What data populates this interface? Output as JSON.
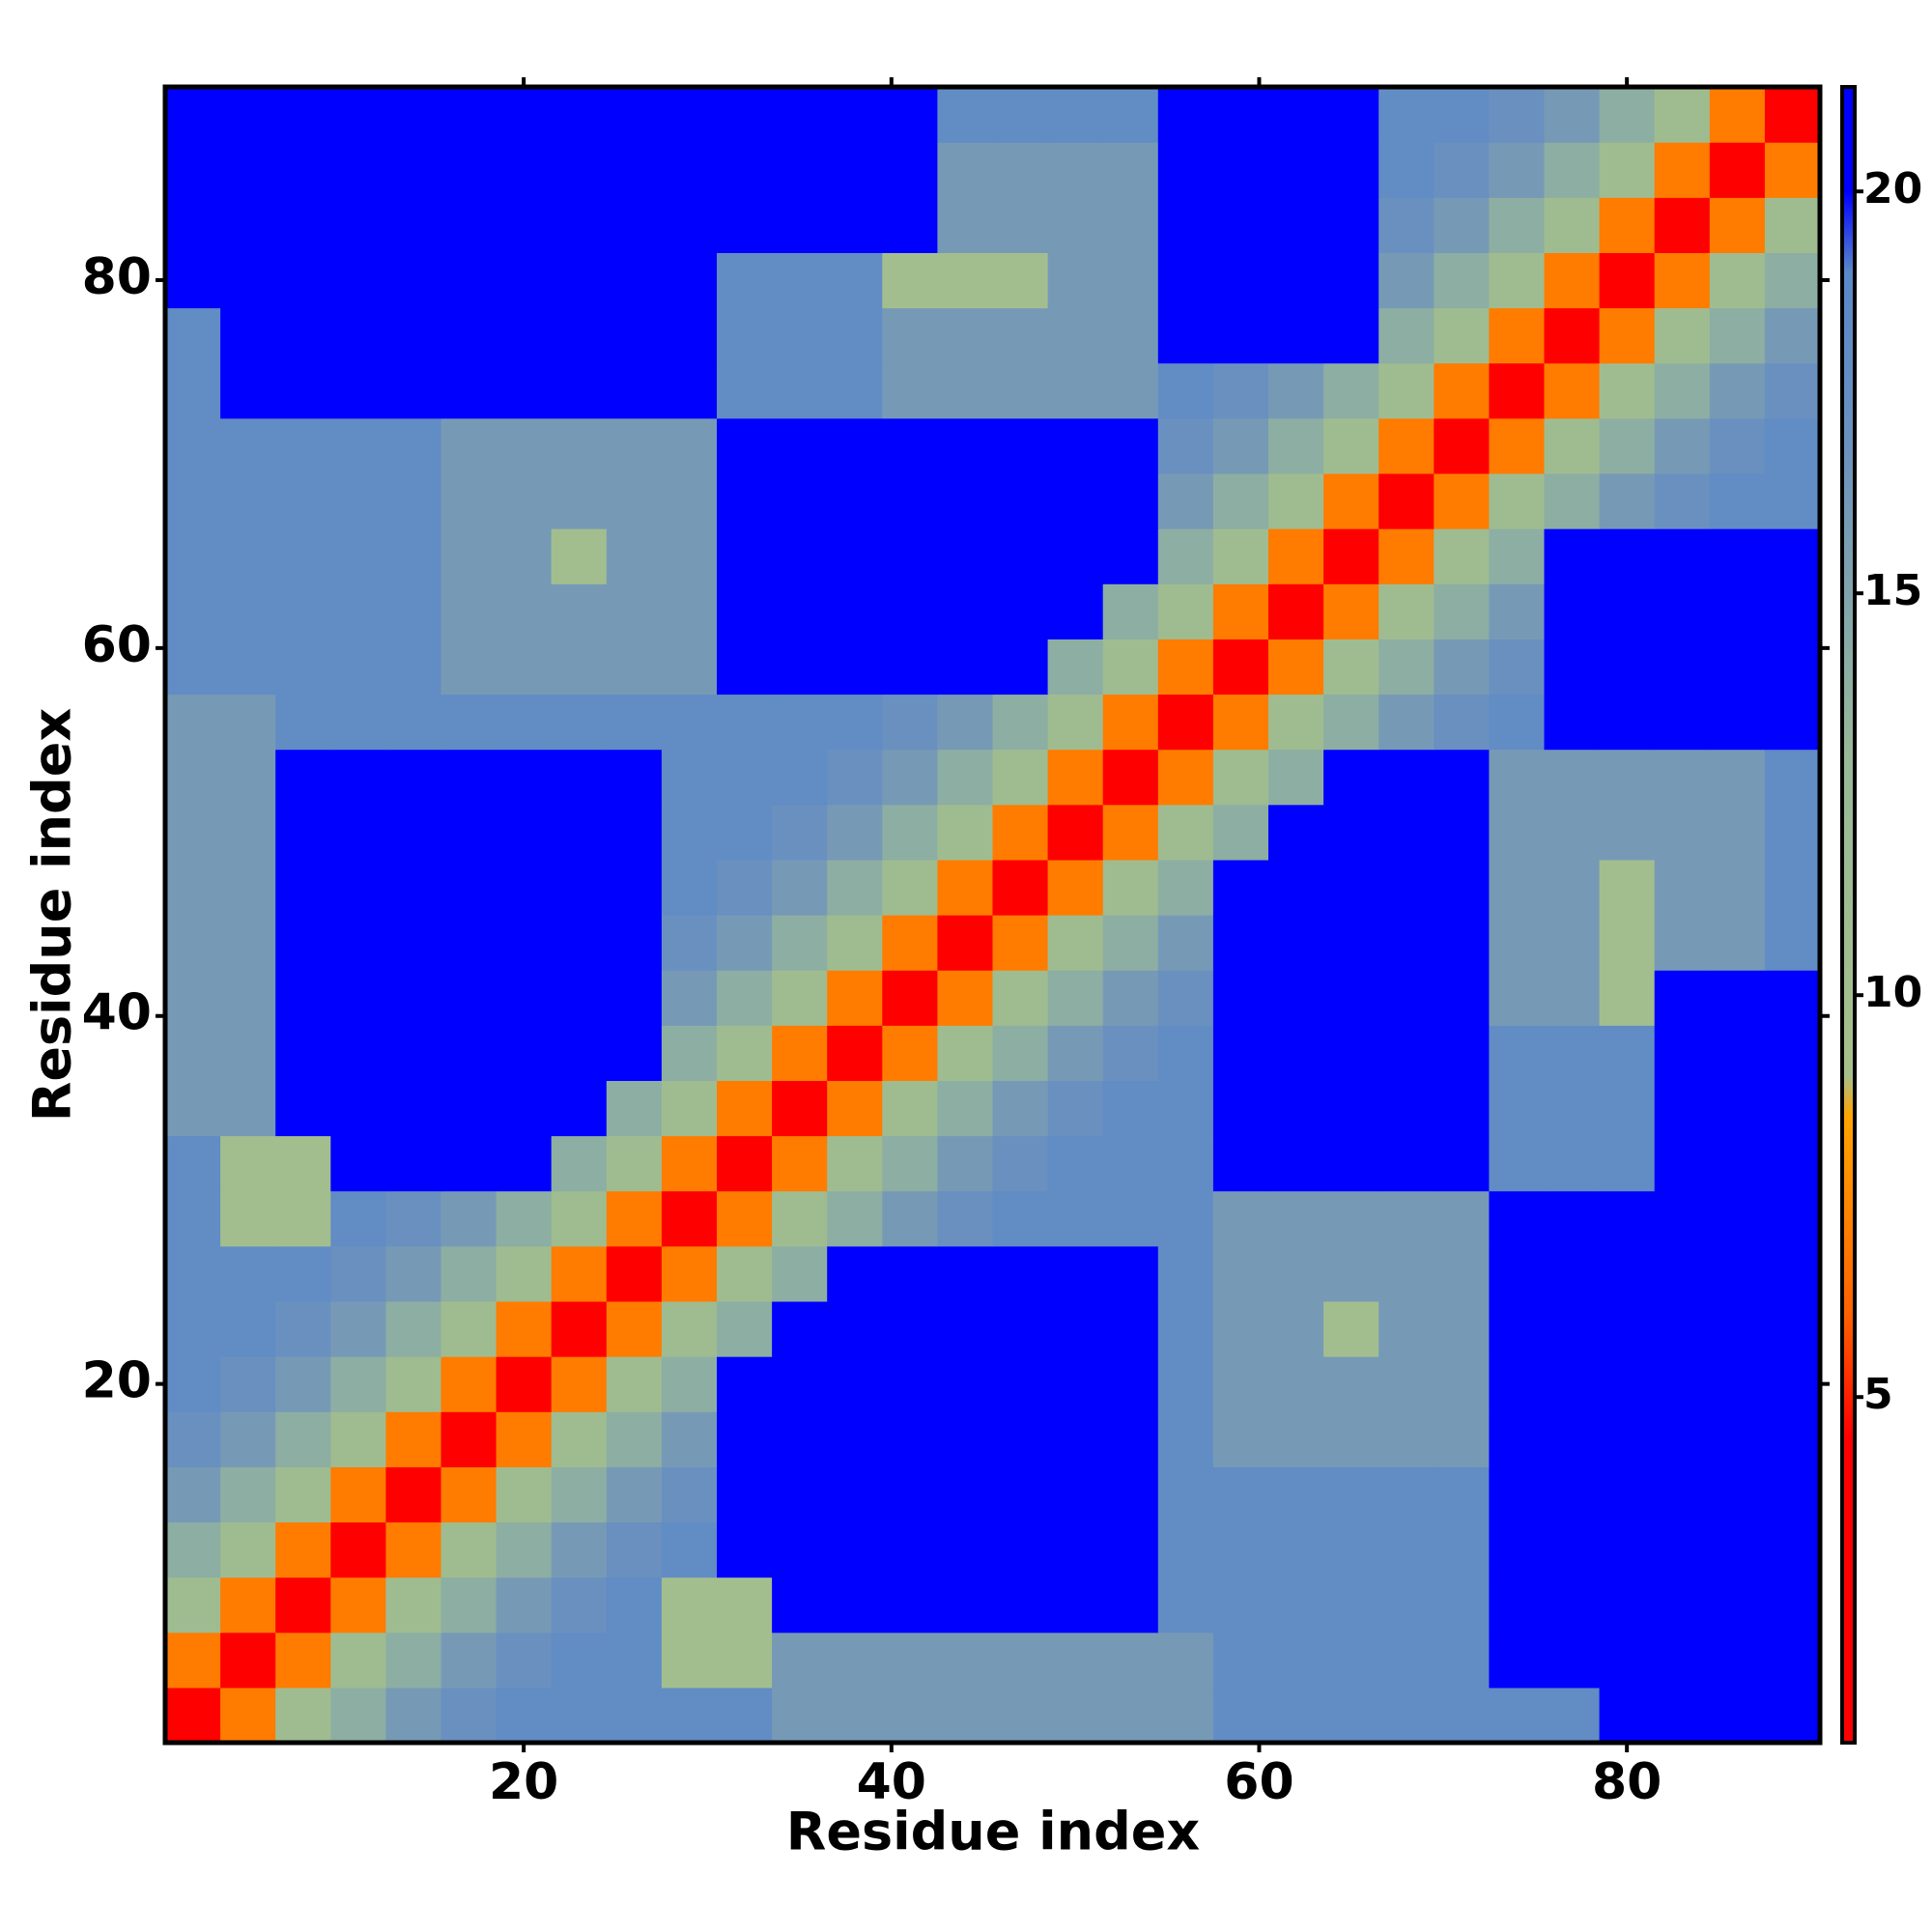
{
  "chart_data": {
    "type": "heatmap",
    "x_label": "Residue index",
    "y_label": "Residue index",
    "x": [
      2,
      5,
      8,
      11,
      14,
      17,
      20,
      23,
      26,
      29,
      32,
      35,
      38,
      41,
      44,
      47,
      50,
      53,
      56,
      59,
      62,
      65,
      68,
      71,
      74,
      77,
      80,
      83,
      86,
      89
    ],
    "y": [
      2,
      5,
      8,
      11,
      14,
      17,
      20,
      23,
      26,
      29,
      32,
      35,
      38,
      41,
      44,
      47,
      50,
      53,
      56,
      59,
      62,
      65,
      68,
      71,
      74,
      77,
      80,
      83,
      86,
      89
    ],
    "xlim": [
      0.5,
      90.5
    ],
    "ylim": [
      0.5,
      90.5
    ],
    "xticks": [
      20,
      40,
      60,
      80
    ],
    "yticks": [
      20,
      40,
      60,
      80
    ],
    "zlim": [
      0.7,
      21.3
    ],
    "zticks": [
      5,
      10,
      15,
      20
    ],
    "colorscale": [
      [
        0.7,
        "#ff0000"
      ],
      [
        4.5,
        "#ff0000"
      ],
      [
        6,
        "#ff6000"
      ],
      [
        8.5,
        "#ffa500"
      ],
      [
        9,
        "#a6c08a"
      ],
      [
        13,
        "#98b898"
      ],
      [
        17,
        "#6a90c0"
      ],
      [
        19,
        "#5a88c8"
      ],
      [
        20,
        "#0000ff"
      ],
      [
        21.3,
        "#0000ff"
      ]
    ],
    "z": [
      [
        3,
        7,
        11,
        14,
        16,
        17,
        18,
        18,
        18,
        18,
        18,
        16,
        16,
        16,
        16,
        16,
        16,
        16,
        16,
        18,
        18,
        18,
        18,
        18,
        18,
        18,
        21,
        21,
        21,
        21
      ],
      [
        7,
        3,
        7,
        11,
        14,
        16,
        17,
        18,
        18,
        10,
        10,
        16,
        16,
        16,
        16,
        16,
        16,
        16,
        16,
        18,
        18,
        18,
        18,
        18,
        21,
        21,
        21,
        21,
        21,
        21
      ],
      [
        11,
        7,
        3,
        7,
        11,
        14,
        16,
        17,
        18,
        10,
        10,
        21,
        21,
        21,
        21,
        21,
        21,
        21,
        18,
        18,
        18,
        18,
        18,
        18,
        21,
        21,
        21,
        21,
        21,
        21
      ],
      [
        14,
        11,
        7,
        3,
        7,
        11,
        14,
        16,
        17,
        18,
        21,
        21,
        21,
        21,
        21,
        21,
        21,
        21,
        18,
        18,
        18,
        18,
        18,
        18,
        21,
        21,
        21,
        21,
        21,
        21
      ],
      [
        16,
        14,
        11,
        7,
        3,
        7,
        11,
        14,
        16,
        17,
        21,
        21,
        21,
        21,
        21,
        21,
        21,
        21,
        18,
        18,
        18,
        18,
        18,
        18,
        21,
        21,
        21,
        21,
        21,
        21
      ],
      [
        17,
        16,
        14,
        11,
        7,
        3,
        7,
        11,
        14,
        16,
        21,
        21,
        21,
        21,
        21,
        21,
        21,
        21,
        18,
        16,
        16,
        16,
        16,
        16,
        21,
        21,
        21,
        21,
        21,
        21
      ],
      [
        18,
        17,
        16,
        14,
        11,
        7,
        3,
        7,
        11,
        14,
        21,
        21,
        21,
        21,
        21,
        21,
        21,
        21,
        18,
        16,
        16,
        16,
        16,
        16,
        21,
        21,
        21,
        21,
        21,
        21
      ],
      [
        18,
        18,
        17,
        16,
        14,
        11,
        7,
        3,
        7,
        11,
        14,
        21,
        21,
        21,
        21,
        21,
        21,
        21,
        18,
        16,
        16,
        10,
        16,
        16,
        21,
        21,
        21,
        21,
        21,
        21
      ],
      [
        18,
        18,
        18,
        17,
        16,
        14,
        11,
        7,
        3,
        7,
        11,
        14,
        21,
        21,
        21,
        21,
        21,
        21,
        18,
        16,
        16,
        16,
        16,
        16,
        21,
        21,
        21,
        21,
        21,
        21
      ],
      [
        18,
        10,
        10,
        18,
        17,
        16,
        14,
        11,
        7,
        3,
        7,
        11,
        14,
        16,
        17,
        18,
        18,
        18,
        18,
        16,
        16,
        16,
        16,
        16,
        21,
        21,
        21,
        21,
        21,
        21
      ],
      [
        18,
        10,
        10,
        21,
        21,
        21,
        21,
        14,
        11,
        7,
        3,
        7,
        11,
        14,
        16,
        17,
        18,
        18,
        18,
        21,
        21,
        21,
        21,
        21,
        18,
        18,
        18,
        21,
        21,
        21
      ],
      [
        16,
        16,
        21,
        21,
        21,
        21,
        21,
        21,
        14,
        11,
        7,
        3,
        7,
        11,
        14,
        16,
        17,
        18,
        18,
        21,
        21,
        21,
        21,
        21,
        18,
        18,
        18,
        21,
        21,
        21
      ],
      [
        16,
        16,
        21,
        21,
        21,
        21,
        21,
        21,
        21,
        14,
        11,
        7,
        3,
        7,
        11,
        14,
        16,
        17,
        18,
        21,
        21,
        21,
        21,
        21,
        18,
        18,
        18,
        21,
        21,
        21
      ],
      [
        16,
        16,
        21,
        21,
        21,
        21,
        21,
        21,
        21,
        16,
        14,
        11,
        7,
        3,
        7,
        11,
        14,
        16,
        17,
        21,
        21,
        21,
        21,
        21,
        16,
        16,
        10,
        21,
        21,
        21
      ],
      [
        16,
        16,
        21,
        21,
        21,
        21,
        21,
        21,
        21,
        17,
        16,
        14,
        11,
        7,
        3,
        7,
        11,
        14,
        16,
        21,
        21,
        21,
        21,
        21,
        16,
        16,
        10,
        16,
        16,
        18
      ],
      [
        16,
        16,
        21,
        21,
        21,
        21,
        21,
        21,
        21,
        18,
        17,
        16,
        14,
        11,
        7,
        3,
        7,
        11,
        14,
        21,
        21,
        21,
        21,
        21,
        16,
        16,
        10,
        16,
        16,
        18
      ],
      [
        16,
        16,
        21,
        21,
        21,
        21,
        21,
        21,
        21,
        18,
        18,
        17,
        16,
        14,
        11,
        7,
        3,
        7,
        11,
        14,
        21,
        21,
        21,
        21,
        16,
        16,
        16,
        16,
        16,
        18
      ],
      [
        16,
        16,
        21,
        21,
        21,
        21,
        21,
        21,
        21,
        18,
        18,
        18,
        17,
        16,
        14,
        11,
        7,
        3,
        7,
        11,
        14,
        21,
        21,
        21,
        16,
        16,
        16,
        16,
        16,
        18
      ],
      [
        16,
        16,
        18,
        18,
        18,
        18,
        18,
        18,
        18,
        18,
        18,
        18,
        18,
        17,
        16,
        14,
        11,
        7,
        3,
        7,
        11,
        14,
        16,
        17,
        18,
        21,
        21,
        21,
        21,
        21
      ],
      [
        18,
        18,
        18,
        18,
        18,
        16,
        16,
        16,
        16,
        16,
        21,
        21,
        21,
        21,
        21,
        21,
        14,
        11,
        7,
        3,
        7,
        11,
        14,
        16,
        17,
        21,
        21,
        21,
        21,
        21
      ],
      [
        18,
        18,
        18,
        18,
        18,
        16,
        16,
        16,
        16,
        16,
        21,
        21,
        21,
        21,
        21,
        21,
        21,
        14,
        11,
        7,
        3,
        7,
        11,
        14,
        16,
        21,
        21,
        21,
        21,
        21
      ],
      [
        18,
        18,
        18,
        18,
        18,
        16,
        16,
        10,
        16,
        16,
        21,
        21,
        21,
        21,
        21,
        21,
        21,
        21,
        14,
        11,
        7,
        3,
        7,
        11,
        14,
        21,
        21,
        21,
        21,
        21
      ],
      [
        18,
        18,
        18,
        18,
        18,
        16,
        16,
        16,
        16,
        16,
        21,
        21,
        21,
        21,
        21,
        21,
        21,
        21,
        16,
        14,
        11,
        7,
        3,
        7,
        11,
        14,
        16,
        17,
        18,
        18
      ],
      [
        18,
        18,
        18,
        18,
        18,
        16,
        16,
        16,
        16,
        16,
        21,
        21,
        21,
        21,
        21,
        21,
        21,
        21,
        17,
        16,
        14,
        11,
        7,
        3,
        7,
        11,
        14,
        16,
        17,
        18
      ],
      [
        18,
        21,
        21,
        21,
        21,
        21,
        21,
        21,
        21,
        21,
        18,
        18,
        18,
        16,
        16,
        16,
        16,
        16,
        18,
        17,
        16,
        14,
        11,
        7,
        3,
        7,
        11,
        14,
        16,
        17
      ],
      [
        18,
        21,
        21,
        21,
        21,
        21,
        21,
        21,
        21,
        21,
        18,
        18,
        18,
        16,
        16,
        16,
        16,
        16,
        21,
        21,
        21,
        21,
        14,
        11,
        7,
        3,
        7,
        11,
        14,
        16
      ],
      [
        21,
        21,
        21,
        21,
        21,
        21,
        21,
        21,
        21,
        21,
        18,
        18,
        18,
        10,
        10,
        10,
        16,
        16,
        21,
        21,
        21,
        21,
        16,
        14,
        11,
        7,
        3,
        7,
        11,
        14
      ],
      [
        21,
        21,
        21,
        21,
        21,
        21,
        21,
        21,
        21,
        21,
        21,
        21,
        21,
        21,
        16,
        16,
        16,
        16,
        21,
        21,
        21,
        21,
        17,
        16,
        14,
        11,
        7,
        3,
        7,
        11
      ],
      [
        21,
        21,
        21,
        21,
        21,
        21,
        21,
        21,
        21,
        21,
        21,
        21,
        21,
        21,
        16,
        16,
        16,
        16,
        21,
        21,
        21,
        21,
        18,
        17,
        16,
        14,
        11,
        7,
        3,
        7
      ],
      [
        21,
        21,
        21,
        21,
        21,
        21,
        21,
        21,
        21,
        21,
        21,
        21,
        21,
        21,
        18,
        18,
        18,
        18,
        21,
        21,
        21,
        21,
        18,
        18,
        17,
        16,
        14,
        11,
        7,
        3
      ]
    ]
  }
}
